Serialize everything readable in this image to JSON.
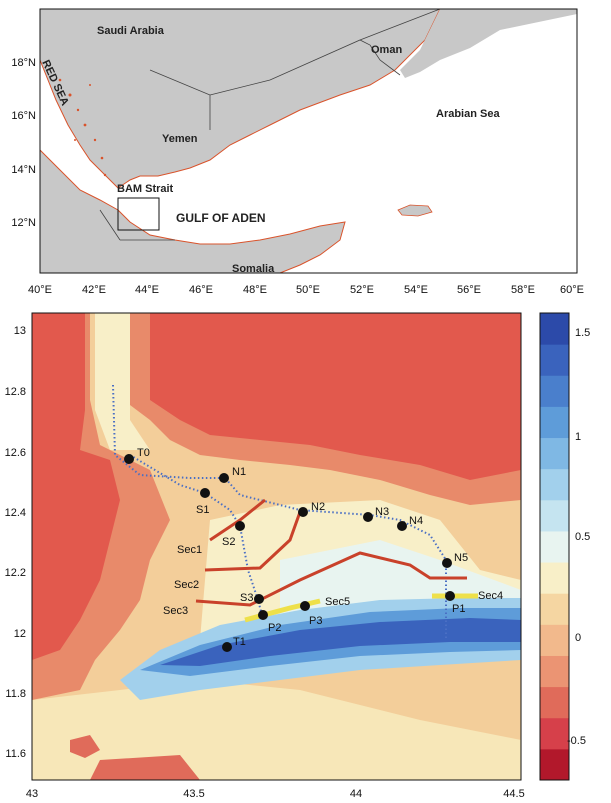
{
  "overview_map": {
    "labels": {
      "saudi_arabia": "Saudi Arabia",
      "red_sea": "RED SEA",
      "oman": "Oman",
      "yemen": "Yemen",
      "arabian_sea": "Arabian Sea",
      "bam_strait": "BAM Strait",
      "gulf_of_aden": "GULF OF ADEN",
      "somalia": "Somalia"
    },
    "lat_ticks": [
      "18°N",
      "16°N",
      "14°N",
      "12°N"
    ],
    "lon_ticks": [
      "40°E",
      "42°E",
      "44°E",
      "46°E",
      "48°E",
      "50°E",
      "52°E",
      "54°E",
      "56°E",
      "58°E",
      "60°E"
    ],
    "colors": {
      "land": "#c8c8c8",
      "sea": "#ffffff",
      "coast": "#d9532b",
      "border": "#444444"
    }
  },
  "detail_map": {
    "x_ticks": [
      "43",
      "43.5",
      "44",
      "44.5"
    ],
    "y_ticks": [
      "13",
      "12.8",
      "12.6",
      "12.4",
      "12.2",
      "12",
      "11.8",
      "11.6"
    ],
    "stations": [
      {
        "id": "T0",
        "lon": 43.32,
        "lat": 12.57
      },
      {
        "id": "N1",
        "lon": 43.6,
        "lat": 12.5
      },
      {
        "id": "S1",
        "lon": 43.57,
        "lat": 12.46
      },
      {
        "id": "N2",
        "lon": 43.83,
        "lat": 12.39
      },
      {
        "id": "N3",
        "lon": 44.04,
        "lat": 12.37
      },
      {
        "id": "N4",
        "lon": 44.14,
        "lat": 12.34
      },
      {
        "id": "S2",
        "lon": 43.64,
        "lat": 12.34
      },
      {
        "id": "N5",
        "lon": 44.3,
        "lat": 12.22
      },
      {
        "id": "S3",
        "lon": 43.71,
        "lat": 12.1
      },
      {
        "id": "P1",
        "lon": 44.3,
        "lat": 12.11
      },
      {
        "id": "P2",
        "lon": 43.72,
        "lat": 12.05
      },
      {
        "id": "P3",
        "lon": 43.87,
        "lat": 12.08
      },
      {
        "id": "T1",
        "lon": 43.6,
        "lat": 11.95
      }
    ],
    "sections": [
      {
        "name": "Sec1",
        "color": "red"
      },
      {
        "name": "Sec2",
        "color": "red"
      },
      {
        "name": "Sec3",
        "color": "red"
      },
      {
        "name": "Sec4",
        "color": "yellow"
      },
      {
        "name": "Sec5",
        "color": "yellow"
      }
    ],
    "colorbar": {
      "ticks": [
        "1.5",
        "1",
        "0.5",
        "0",
        "-0.5"
      ],
      "range": [
        -0.8,
        1.6
      ],
      "colors_low_to_high": [
        "#b2182b",
        "#d6404a",
        "#e06b5a",
        "#eb9473",
        "#f2b98c",
        "#f5d6a2",
        "#f8efc8",
        "#e8f4f0",
        "#c5e4f0",
        "#a2d0ec",
        "#7fb8e4",
        "#5e9cd9",
        "#4a7fcc",
        "#3a63bd",
        "#2c4aa9"
      ]
    }
  }
}
